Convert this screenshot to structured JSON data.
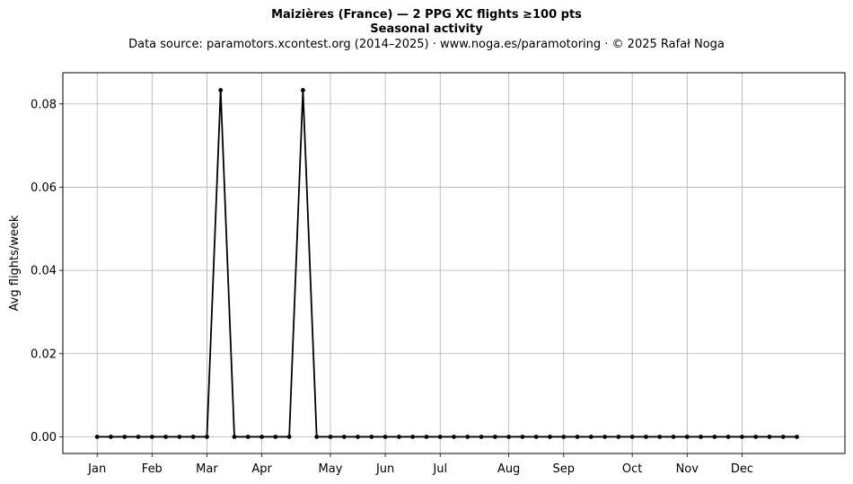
{
  "header": {
    "title": "Maizières (France)  —  2 PPG XC flights ≥100 pts",
    "subtitle": "Seasonal activity",
    "source": "Data source: paramotors.xcontest.org (2014–2025)  ·  www.noga.es/paramotoring  ·  © 2025 Rafał Noga"
  },
  "chart_data": {
    "type": "line",
    "title": "Maizières (France)  —  2 PPG XC flights ≥100 pts",
    "subtitle": "Seasonal activity",
    "xlabel": "",
    "ylabel": "Avg flights/week",
    "ylim": [
      -0.004,
      0.0875
    ],
    "yticks": [
      0.0,
      0.02,
      0.04,
      0.06,
      0.08
    ],
    "ytick_labels": [
      "0.00",
      "0.02",
      "0.04",
      "0.06",
      "0.08"
    ],
    "xlim": [
      -2.5,
      54.5
    ],
    "x_ticks": [
      {
        "label": "Jan",
        "x": 0
      },
      {
        "label": "Feb",
        "x": 4
      },
      {
        "label": "Mar",
        "x": 8
      },
      {
        "label": "Apr",
        "x": 12
      },
      {
        "label": "May",
        "x": 17
      },
      {
        "label": "Jun",
        "x": 21
      },
      {
        "label": "Jul",
        "x": 25
      },
      {
        "label": "Aug",
        "x": 30
      },
      {
        "label": "Sep",
        "x": 34
      },
      {
        "label": "Oct",
        "x": 39
      },
      {
        "label": "Nov",
        "x": 43
      },
      {
        "label": "Dec",
        "x": 47
      }
    ],
    "grid": true,
    "color": "#000000",
    "series": [
      {
        "x": [
          0,
          1,
          2,
          3,
          4,
          5,
          6,
          7,
          8,
          9,
          10,
          11,
          12,
          13,
          14,
          15,
          16,
          17,
          18,
          19,
          20,
          21,
          22,
          23,
          24,
          25,
          26,
          27,
          28,
          29,
          30,
          31,
          32,
          33,
          34,
          35,
          36,
          37,
          38,
          39,
          40,
          41,
          42,
          43,
          44,
          45,
          46,
          47,
          48,
          49,
          50,
          51
        ],
        "values": [
          0,
          0,
          0,
          0,
          0,
          0,
          0,
          0,
          0,
          0.0833,
          0,
          0,
          0,
          0,
          0,
          0.0833,
          0,
          0,
          0,
          0,
          0,
          0,
          0,
          0,
          0,
          0,
          0,
          0,
          0,
          0,
          0,
          0,
          0,
          0,
          0,
          0,
          0,
          0,
          0,
          0,
          0,
          0,
          0,
          0,
          0,
          0,
          0,
          0,
          0,
          0,
          0,
          0
        ]
      }
    ]
  }
}
